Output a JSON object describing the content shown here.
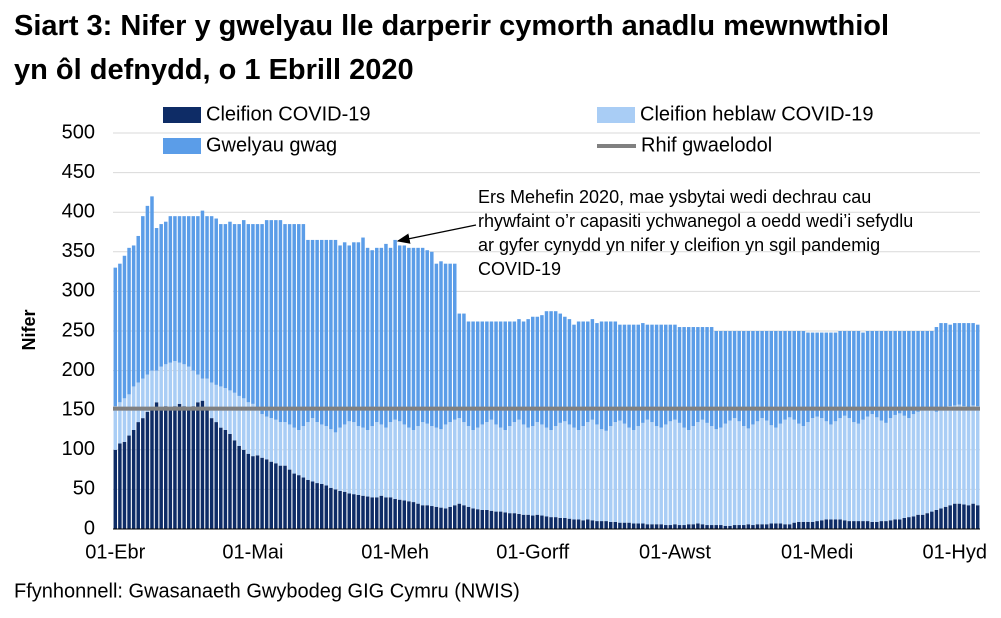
{
  "chart_data": {
    "type": "stacked-bar",
    "title": "Siart 3: Nifer y gwelyau lle darperir cymorth anadlu mewnwthiol yn ôl defnydd, o 1 Ebrill 2020",
    "y_label": "Nifer",
    "source": "Ffynhonnell: Gwasanaeth Gwybodeg GIG Cymru (NWIS)",
    "annotation": [
      "Ers Mehefin 2020, mae ysbytai wedi dechrau cau",
      "rhywfaint o’r capasiti ychwanegol a oedd wedi’i sefydlu",
      "ar gyfer cynydd yn nifer y cleifion yn sgil pandemig",
      "COVID-19"
    ],
    "ylim": [
      0,
      500
    ],
    "yticks": [
      0,
      50,
      100,
      150,
      200,
      250,
      300,
      350,
      400,
      450,
      500
    ],
    "grid": true,
    "categories": [
      "01-Ebr",
      null,
      null,
      null,
      null,
      null,
      null,
      null,
      null,
      null,
      null,
      null,
      null,
      null,
      null,
      null,
      null,
      null,
      null,
      null,
      null,
      null,
      null,
      null,
      null,
      null,
      null,
      null,
      null,
      null,
      "01-Mai",
      null,
      null,
      null,
      null,
      null,
      null,
      null,
      null,
      null,
      null,
      null,
      null,
      null,
      null,
      null,
      null,
      null,
      null,
      null,
      null,
      null,
      null,
      null,
      null,
      null,
      null,
      null,
      null,
      null,
      null,
      "01-Meh",
      null,
      null,
      null,
      null,
      null,
      null,
      null,
      null,
      null,
      null,
      null,
      null,
      null,
      null,
      null,
      null,
      null,
      null,
      null,
      null,
      null,
      null,
      null,
      null,
      null,
      null,
      null,
      null,
      null,
      "01-Gorff",
      null,
      null,
      null,
      null,
      null,
      null,
      null,
      null,
      null,
      null,
      null,
      null,
      null,
      null,
      null,
      null,
      null,
      null,
      null,
      null,
      null,
      null,
      null,
      null,
      null,
      null,
      null,
      null,
      null,
      null,
      "01-Awst",
      null,
      null,
      null,
      null,
      null,
      null,
      null,
      null,
      null,
      null,
      null,
      null,
      null,
      null,
      null,
      null,
      null,
      null,
      null,
      null,
      null,
      null,
      null,
      null,
      null,
      null,
      null,
      null,
      null,
      null,
      "01-Medi",
      null,
      null,
      null,
      null,
      null,
      null,
      null,
      null,
      null,
      null,
      null,
      null,
      null,
      null,
      null,
      null,
      null,
      null,
      null,
      null,
      null,
      null,
      null,
      null,
      null,
      null,
      null,
      null,
      null,
      "01-Hyd",
      null,
      null,
      null,
      null,
      null
    ],
    "series": [
      {
        "name": "Cleifion COVID-19",
        "color": "#0e2c66",
        "values": [
          100,
          108,
          110,
          118,
          125,
          135,
          140,
          148,
          152,
          160,
          150,
          155,
          152,
          155,
          158,
          155,
          150,
          155,
          160,
          162,
          150,
          140,
          135,
          128,
          125,
          120,
          112,
          105,
          100,
          95,
          92,
          93,
          90,
          88,
          85,
          83,
          80,
          80,
          75,
          70,
          68,
          65,
          62,
          60,
          58,
          57,
          55,
          52,
          50,
          48,
          47,
          45,
          44,
          43,
          42,
          41,
          40,
          40,
          42,
          40,
          40,
          38,
          37,
          36,
          35,
          34,
          32,
          30,
          30,
          29,
          28,
          27,
          26,
          28,
          30,
          32,
          30,
          28,
          26,
          25,
          24,
          24,
          23,
          22,
          22,
          21,
          20,
          20,
          19,
          18,
          18,
          17,
          18,
          17,
          16,
          15,
          15,
          14,
          14,
          13,
          12,
          12,
          11,
          12,
          11,
          10,
          10,
          10,
          9,
          9,
          8,
          8,
          8,
          7,
          7,
          7,
          6,
          6,
          6,
          6,
          5,
          5,
          6,
          5,
          5,
          6,
          6,
          7,
          6,
          5,
          5,
          5,
          5,
          4,
          4,
          5,
          5,
          5,
          6,
          5,
          6,
          6,
          6,
          7,
          7,
          7,
          6,
          6,
          8,
          9,
          9,
          9,
          9,
          10,
          11,
          12,
          12,
          12,
          12,
          11,
          10,
          10,
          10,
          10,
          10,
          9,
          9,
          10,
          10,
          11,
          12,
          12,
          14,
          15,
          16,
          18,
          18,
          20,
          22,
          24,
          26,
          28,
          30,
          32,
          32,
          31,
          30,
          32,
          30
        ]
      },
      {
        "name": "Cleifion heblaw COVID-19",
        "color": "#a9cdf5",
        "values": [
          55,
          52,
          55,
          52,
          55,
          50,
          50,
          47,
          48,
          40,
          55,
          53,
          58,
          57,
          52,
          53,
          55,
          45,
          35,
          28,
          40,
          45,
          47,
          52,
          53,
          55,
          60,
          63,
          65,
          65,
          66,
          57,
          55,
          54,
          55,
          55,
          55,
          55,
          57,
          58,
          57,
          65,
          73,
          80,
          77,
          75,
          75,
          74,
          72,
          80,
          85,
          91,
          91,
          87,
          86,
          84,
          90,
          95,
          90,
          88,
          95,
          100,
          99,
          96,
          93,
          91,
          98,
          105,
          103,
          101,
          100,
          99,
          106,
          107,
          108,
          108,
          105,
          102,
          99,
          103,
          108,
          111,
          115,
          110,
          106,
          104,
          110,
          115,
          119,
          114,
          110,
          113,
          117,
          115,
          112,
          110,
          115,
          120,
          122,
          119,
          116,
          113,
          119,
          123,
          127,
          122,
          116,
          114,
          121,
          126,
          129,
          125,
          120,
          118,
          123,
          127,
          132,
          129,
          124,
          122,
          127,
          131,
          132,
          129,
          123,
          119,
          124,
          128,
          132,
          129,
          125,
          121,
          123,
          129,
          133,
          135,
          131,
          125,
          121,
          127,
          130,
          134,
          131,
          124,
          121,
          126,
          132,
          135,
          130,
          124,
          121,
          126,
          131,
          132,
          129,
          124,
          120,
          124,
          128,
          132,
          130,
          125,
          123,
          128,
          132,
          136,
          132,
          127,
          124,
          129,
          132,
          134,
          129,
          125,
          129,
          130,
          132,
          132,
          128,
          124,
          126,
          126,
          125,
          124,
          125,
          124,
          123,
          124,
          125
        ]
      },
      {
        "name": "Gwelyau gwag",
        "color": "#5b9de8",
        "values": [
          175,
          175,
          180,
          185,
          178,
          185,
          205,
          213,
          220,
          180,
          180,
          180,
          185,
          183,
          185,
          187,
          190,
          195,
          200,
          212,
          205,
          210,
          210,
          205,
          207,
          213,
          213,
          217,
          225,
          225,
          227,
          235,
          240,
          248,
          250,
          252,
          255,
          250,
          253,
          257,
          260,
          255,
          230,
          225,
          230,
          233,
          235,
          239,
          243,
          230,
          230,
          222,
          227,
          232,
          240,
          230,
          222,
          220,
          223,
          232,
          220,
          227,
          222,
          226,
          227,
          230,
          225,
          220,
          219,
          220,
          207,
          212,
          203,
          200,
          197,
          132,
          137,
          132,
          137,
          134,
          130,
          127,
          124,
          130,
          134,
          137,
          132,
          127,
          127,
          130,
          137,
          138,
          133,
          138,
          147,
          150,
          145,
          138,
          132,
          133,
          130,
          137,
          132,
          127,
          127,
          128,
          136,
          138,
          132,
          127,
          121,
          125,
          130,
          133,
          128,
          126,
          120,
          123,
          128,
          130,
          126,
          122,
          120,
          121,
          127,
          130,
          125,
          120,
          117,
          121,
          125,
          124,
          122,
          117,
          113,
          110,
          114,
          120,
          123,
          118,
          114,
          110,
          113,
          119,
          122,
          117,
          112,
          109,
          112,
          117,
          120,
          113,
          108,
          106,
          108,
          112,
          116,
          112,
          110,
          107,
          110,
          115,
          117,
          110,
          108,
          105,
          109,
          113,
          116,
          110,
          106,
          104,
          107,
          110,
          105,
          102,
          100,
          98,
          100,
          107,
          108,
          106,
          103,
          104,
          103,
          105,
          107,
          104,
          103
        ]
      }
    ],
    "baseline": {
      "name": "Rhif gwaelodol",
      "color": "#808080",
      "value": 152
    }
  }
}
